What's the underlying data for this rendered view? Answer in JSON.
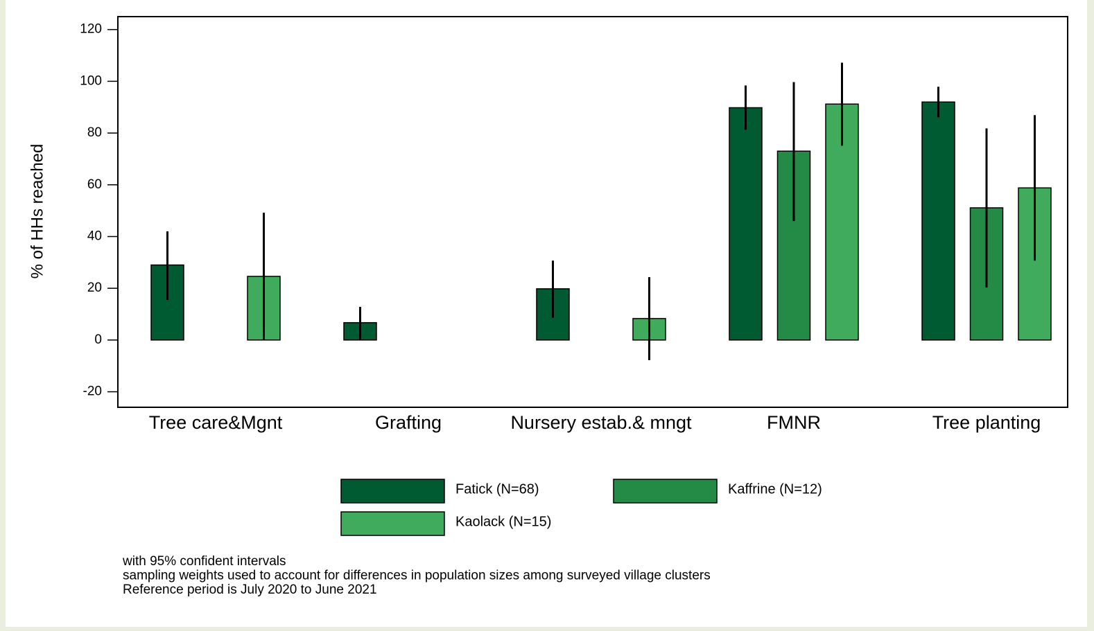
{
  "chart_data": {
    "type": "bar",
    "y_label": "% of HHs reached",
    "categories": [
      "Tree care&Mgnt",
      "Grafting",
      "Nursery estab.& mngt",
      "FMNR",
      "Tree planting"
    ],
    "series": [
      {
        "name": "Fatick (N=68)",
        "color": "#005a32",
        "values": [
          29,
          6.7,
          19.8,
          89.8,
          92
        ],
        "ci_low": [
          15.5,
          0,
          8.6,
          81.3,
          86.1
        ],
        "ci_high": [
          42,
          12.8,
          30.7,
          98.4,
          97.9
        ]
      },
      {
        "name": "Kaffrine (N=12)",
        "color": "#238b45",
        "values": [
          null,
          null,
          null,
          73,
          51.1
        ],
        "ci_low": [
          null,
          null,
          null,
          46,
          20.3
        ],
        "ci_high": [
          null,
          null,
          null,
          99.7,
          81.8
        ]
      },
      {
        "name": "Kaolack (N=15)",
        "color": "#41ab5d",
        "values": [
          24.6,
          null,
          8.3,
          91.2,
          58.8
        ],
        "ci_low": [
          0,
          null,
          -7.8,
          75.1,
          30.7
        ],
        "ci_high": [
          49.2,
          null,
          24.3,
          107.2,
          86.9
        ]
      }
    ],
    "ylim": [
      -26,
      125
    ],
    "yticks": [
      -20,
      0,
      20,
      40,
      60,
      80,
      100,
      120
    ],
    "notes": [
      "with 95% confident intervals",
      "sampling weights used to account for differences in population sizes among surveyed village clusters",
      "Reference period is July 2020 to June 2021"
    ]
  }
}
